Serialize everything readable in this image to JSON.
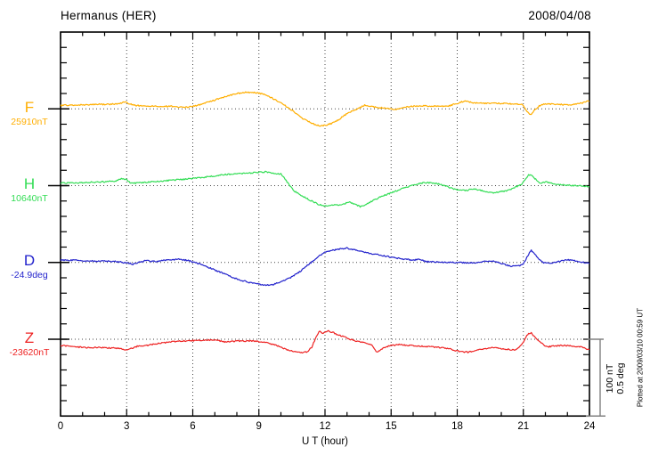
{
  "header": {
    "station": "Hermanus (HER)",
    "date": "2008/04/08"
  },
  "chart_data": {
    "type": "line",
    "title": "Hermanus (HER)",
    "date": "2008/04/08",
    "xlabel": "U T (hour)",
    "x_range": [
      0,
      24
    ],
    "x_major_ticks": [
      0,
      3,
      6,
      9,
      12,
      15,
      18,
      21,
      24
    ],
    "x_tick_labels": [
      "0",
      "3",
      "6",
      "9",
      "12",
      "15",
      "18",
      "21",
      "24"
    ],
    "gridline_hours": [
      3,
      6,
      9,
      12,
      15,
      18,
      21
    ],
    "grid": "dotted",
    "scale_bar": {
      "lines": [
        "100 nT",
        "0.5 deg"
      ]
    },
    "footnote": "Plotted at 2009/03/10 00:59 UT",
    "series": [
      {
        "name": "F",
        "value_label": "25910nT",
        "unit": "nT",
        "color": "#FFAE00",
        "scale_per_division": 100,
        "points": [
          [
            0,
            4.5
          ],
          [
            0.5,
            4.8
          ],
          [
            1,
            5.2
          ],
          [
            1.5,
            5.8
          ],
          [
            2,
            5.8
          ],
          [
            2.5,
            6.2
          ],
          [
            2.9,
            8.7
          ],
          [
            3.1,
            7
          ],
          [
            3.4,
            4.5
          ],
          [
            4,
            3.5
          ],
          [
            4.5,
            3
          ],
          [
            5,
            3.5
          ],
          [
            5.6,
            1.7
          ],
          [
            6,
            3
          ],
          [
            6.5,
            7
          ],
          [
            7,
            11.5
          ],
          [
            7.5,
            16
          ],
          [
            8,
            20
          ],
          [
            8.4,
            21.5
          ],
          [
            8.8,
            21
          ],
          [
            9.2,
            19.5
          ],
          [
            9.6,
            14
          ],
          [
            10,
            8
          ],
          [
            10.5,
            -2
          ],
          [
            11,
            -13
          ],
          [
            11.5,
            -20
          ],
          [
            11.8,
            -22
          ],
          [
            12,
            -21.5
          ],
          [
            12.3,
            -19
          ],
          [
            12.6,
            -14.5
          ],
          [
            13,
            -6
          ],
          [
            13.5,
            0
          ],
          [
            13.8,
            5
          ],
          [
            14.2,
            2.3
          ],
          [
            14.6,
            1.2
          ],
          [
            15,
            0
          ],
          [
            15.3,
            -0.6
          ],
          [
            15.7,
            2.3
          ],
          [
            16,
            3.5
          ],
          [
            16.5,
            4
          ],
          [
            17,
            3.5
          ],
          [
            17.5,
            3
          ],
          [
            18,
            7
          ],
          [
            18.3,
            10
          ],
          [
            18.7,
            8
          ],
          [
            19,
            7
          ],
          [
            19.5,
            7.5
          ],
          [
            20,
            7
          ],
          [
            20.5,
            6.5
          ],
          [
            20.9,
            6
          ],
          [
            21.05,
            2.3
          ],
          [
            21.2,
            -4.5
          ],
          [
            21.35,
            -8
          ],
          [
            21.5,
            -2.3
          ],
          [
            21.7,
            3.5
          ],
          [
            21.9,
            5.8
          ],
          [
            22.2,
            6.4
          ],
          [
            22.5,
            6
          ],
          [
            23,
            5.2
          ],
          [
            23.4,
            6
          ],
          [
            23.7,
            8
          ],
          [
            24,
            10.5
          ]
        ]
      },
      {
        "name": "H",
        "value_label": "10640nT",
        "unit": "nT",
        "color": "#33DD55",
        "scale_per_division": 100,
        "points": [
          [
            0,
            3.5
          ],
          [
            0.5,
            3.5
          ],
          [
            1,
            4
          ],
          [
            1.5,
            4.6
          ],
          [
            2,
            5
          ],
          [
            2.5,
            5.8
          ],
          [
            2.8,
            9.3
          ],
          [
            3,
            8
          ],
          [
            3.2,
            3
          ],
          [
            3.5,
            3.5
          ],
          [
            4,
            4.6
          ],
          [
            4.5,
            5.8
          ],
          [
            5,
            7
          ],
          [
            5.5,
            8
          ],
          [
            6,
            9.3
          ],
          [
            6.5,
            11
          ],
          [
            7,
            12.8
          ],
          [
            7.5,
            14.5
          ],
          [
            8,
            15.7
          ],
          [
            8.5,
            16.3
          ],
          [
            9,
            17.4
          ],
          [
            9.3,
            18
          ],
          [
            9.6,
            16.3
          ],
          [
            10,
            15
          ],
          [
            10.2,
            8
          ],
          [
            10.4,
            0
          ],
          [
            10.6,
            -7
          ],
          [
            11,
            -14
          ],
          [
            11.3,
            -18.6
          ],
          [
            11.7,
            -24.4
          ],
          [
            12,
            -26.7
          ],
          [
            12.3,
            -25.6
          ],
          [
            12.6,
            -25
          ],
          [
            12.9,
            -23.3
          ],
          [
            13.1,
            -21.5
          ],
          [
            13.35,
            -24.4
          ],
          [
            13.6,
            -27.3
          ],
          [
            13.8,
            -25.6
          ],
          [
            14,
            -22
          ],
          [
            14.5,
            -15
          ],
          [
            15,
            -9.3
          ],
          [
            15.5,
            -4
          ],
          [
            16,
            0.6
          ],
          [
            16.3,
            3
          ],
          [
            16.6,
            4
          ],
          [
            17,
            3
          ],
          [
            17.3,
            1.2
          ],
          [
            17.65,
            -2.3
          ],
          [
            18,
            -5.8
          ],
          [
            18.4,
            -6.4
          ],
          [
            18.7,
            -4
          ],
          [
            19,
            -5.8
          ],
          [
            19.3,
            -7.6
          ],
          [
            19.6,
            -9.3
          ],
          [
            20,
            -7.6
          ],
          [
            20.3,
            -6.4
          ],
          [
            20.6,
            -2.3
          ],
          [
            20.9,
            1.2
          ],
          [
            21.1,
            8
          ],
          [
            21.25,
            14.5
          ],
          [
            21.4,
            12.8
          ],
          [
            21.6,
            7
          ],
          [
            21.8,
            3
          ],
          [
            22,
            5
          ],
          [
            22.3,
            3.5
          ],
          [
            22.6,
            1.2
          ],
          [
            23,
            0.6
          ],
          [
            23.5,
            0
          ],
          [
            24,
            -1.2
          ]
        ]
      },
      {
        "name": "D",
        "value_label": "-24.9deg",
        "unit": "deg",
        "color": "#2222CC",
        "scale_per_division": 0.5,
        "points": [
          [
            0,
            0.015
          ],
          [
            0.5,
            0.015
          ],
          [
            1,
            0.012
          ],
          [
            1.5,
            0.009
          ],
          [
            2,
            0.009
          ],
          [
            2.5,
            0.006
          ],
          [
            3,
            -0.003
          ],
          [
            3.3,
            -0.012
          ],
          [
            3.6,
            0.003
          ],
          [
            3.9,
            0.012
          ],
          [
            4.2,
            0.006
          ],
          [
            4.6,
            0.012
          ],
          [
            5,
            0.017
          ],
          [
            5.4,
            0.02
          ],
          [
            5.8,
            0.012
          ],
          [
            6,
            0.003
          ],
          [
            6.3,
            -0.009
          ],
          [
            6.6,
            -0.026
          ],
          [
            7,
            -0.049
          ],
          [
            7.4,
            -0.073
          ],
          [
            7.8,
            -0.096
          ],
          [
            8.2,
            -0.116
          ],
          [
            8.6,
            -0.131
          ],
          [
            9,
            -0.142
          ],
          [
            9.3,
            -0.148
          ],
          [
            9.6,
            -0.145
          ],
          [
            10,
            -0.128
          ],
          [
            10.4,
            -0.102
          ],
          [
            10.8,
            -0.067
          ],
          [
            11.2,
            -0.02
          ],
          [
            11.5,
            0.015
          ],
          [
            11.8,
            0.049
          ],
          [
            12,
            0.067
          ],
          [
            12.3,
            0.078
          ],
          [
            12.7,
            0.087
          ],
          [
            13,
            0.093
          ],
          [
            13.2,
            0.084
          ],
          [
            13.5,
            0.078
          ],
          [
            14,
            0.061
          ],
          [
            14.5,
            0.047
          ],
          [
            15,
            0.035
          ],
          [
            15.5,
            0.023
          ],
          [
            16,
            0.015
          ],
          [
            16.3,
            0.02
          ],
          [
            16.6,
            0.006
          ],
          [
            17,
            0.003
          ],
          [
            17.5,
            0
          ],
          [
            18,
            0
          ],
          [
            18.5,
            -0.003
          ],
          [
            19,
            0
          ],
          [
            19.5,
            0.012
          ],
          [
            19.8,
            0.003
          ],
          [
            20.2,
            -0.015
          ],
          [
            20.5,
            -0.026
          ],
          [
            20.8,
            -0.023
          ],
          [
            21,
            -0.009
          ],
          [
            21.2,
            0.044
          ],
          [
            21.35,
            0.081
          ],
          [
            21.5,
            0.061
          ],
          [
            21.7,
            0.02
          ],
          [
            21.9,
            0
          ],
          [
            22.3,
            -0.003
          ],
          [
            22.6,
            0.006
          ],
          [
            23,
            0.017
          ],
          [
            23.3,
            0.012
          ],
          [
            23.6,
            0.003
          ],
          [
            24,
            -0.006
          ]
        ]
      },
      {
        "name": "Z",
        "value_label": "-23620nT",
        "unit": "nT",
        "color": "#EE2222",
        "scale_per_division": 100,
        "points": [
          [
            0,
            -8.1
          ],
          [
            0.5,
            -9.3
          ],
          [
            1,
            -10.5
          ],
          [
            1.5,
            -11
          ],
          [
            2,
            -11
          ],
          [
            2.5,
            -11.6
          ],
          [
            3,
            -13.4
          ],
          [
            3.3,
            -11.6
          ],
          [
            3.5,
            -8.7
          ],
          [
            3.8,
            -8.1
          ],
          [
            4,
            -7.6
          ],
          [
            4.5,
            -5.2
          ],
          [
            5,
            -3.5
          ],
          [
            5.5,
            -2.3
          ],
          [
            6,
            -1.7
          ],
          [
            6.5,
            -1.2
          ],
          [
            7,
            -1.2
          ],
          [
            7.5,
            -3.5
          ],
          [
            7.8,
            -2.9
          ],
          [
            8,
            -2.3
          ],
          [
            8.5,
            -2.3
          ],
          [
            9,
            -2.9
          ],
          [
            9.4,
            -5.2
          ],
          [
            9.8,
            -8.1
          ],
          [
            10.2,
            -12.8
          ],
          [
            10.6,
            -16.3
          ],
          [
            11,
            -17.4
          ],
          [
            11.2,
            -16.3
          ],
          [
            11.4,
            -10.5
          ],
          [
            11.6,
            3.5
          ],
          [
            11.75,
            10.5
          ],
          [
            11.9,
            7
          ],
          [
            12.1,
            11
          ],
          [
            12.3,
            9.3
          ],
          [
            12.6,
            5.8
          ],
          [
            12.9,
            2.9
          ],
          [
            13.2,
            -0.6
          ],
          [
            13.5,
            -2.9
          ],
          [
            13.8,
            -4.7
          ],
          [
            14.1,
            -7
          ],
          [
            14.35,
            -16.9
          ],
          [
            14.6,
            -12.2
          ],
          [
            14.8,
            -9.9
          ],
          [
            15,
            -8.1
          ],
          [
            15.4,
            -7
          ],
          [
            15.8,
            -8.1
          ],
          [
            16.2,
            -8.7
          ],
          [
            16.6,
            -9.3
          ],
          [
            17,
            -10.5
          ],
          [
            17.5,
            -11.6
          ],
          [
            17.9,
            -14.5
          ],
          [
            18.2,
            -16.3
          ],
          [
            18.5,
            -16.9
          ],
          [
            18.8,
            -14.5
          ],
          [
            19.2,
            -12.8
          ],
          [
            19.5,
            -11
          ],
          [
            19.8,
            -11.6
          ],
          [
            20.1,
            -12.8
          ],
          [
            20.4,
            -13.4
          ],
          [
            20.6,
            -14
          ],
          [
            20.8,
            -10.5
          ],
          [
            21,
            -3.5
          ],
          [
            21.2,
            6.4
          ],
          [
            21.35,
            8.7
          ],
          [
            21.5,
            3.5
          ],
          [
            21.7,
            -2.3
          ],
          [
            21.9,
            -7
          ],
          [
            22.1,
            -9.9
          ],
          [
            22.4,
            -8.7
          ],
          [
            22.8,
            -8.1
          ],
          [
            23.2,
            -8.7
          ],
          [
            23.6,
            -9.9
          ],
          [
            24,
            -14
          ]
        ]
      }
    ]
  }
}
